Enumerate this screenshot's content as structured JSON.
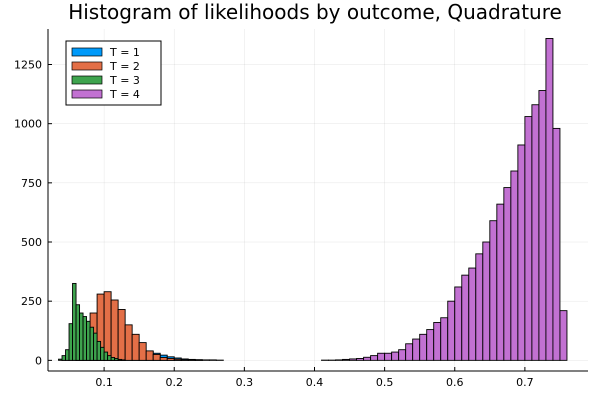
{
  "chart_data": {
    "type": "bar",
    "title": "Histogram of likelihoods by outcome, Quadrature",
    "xlabel": "",
    "ylabel": "",
    "xlim": [
      0.02,
      0.79
    ],
    "ylim": [
      -45,
      1400
    ],
    "xticks": [
      0.1,
      0.2,
      0.3,
      0.4,
      0.5,
      0.6,
      0.7
    ],
    "xtick_labels": [
      "0.1",
      "0.2",
      "0.3",
      "0.4",
      "0.5",
      "0.6",
      "0.7"
    ],
    "yticks": [
      0,
      250,
      500,
      750,
      1000,
      1250
    ],
    "ytick_labels": [
      "0",
      "250",
      "500",
      "750",
      "1000",
      "1250"
    ],
    "grid": true,
    "legend_position": "top-left",
    "series": [
      {
        "name": "T = 1",
        "color": "#009AFA",
        "bin_width": 0.01,
        "bins": [
          [
            0.03,
            0.04,
            0
          ],
          [
            0.04,
            0.05,
            2
          ],
          [
            0.05,
            0.06,
            5
          ],
          [
            0.06,
            0.07,
            10
          ],
          [
            0.07,
            0.08,
            15
          ],
          [
            0.08,
            0.09,
            20
          ],
          [
            0.09,
            0.1,
            25
          ],
          [
            0.1,
            0.11,
            30
          ],
          [
            0.11,
            0.12,
            35
          ],
          [
            0.12,
            0.13,
            40
          ],
          [
            0.13,
            0.14,
            45
          ],
          [
            0.14,
            0.15,
            45
          ],
          [
            0.15,
            0.16,
            40
          ],
          [
            0.16,
            0.17,
            38
          ],
          [
            0.17,
            0.18,
            30
          ],
          [
            0.18,
            0.19,
            22
          ],
          [
            0.19,
            0.2,
            15
          ],
          [
            0.2,
            0.21,
            10
          ],
          [
            0.21,
            0.22,
            6
          ],
          [
            0.22,
            0.23,
            4
          ],
          [
            0.23,
            0.24,
            3
          ],
          [
            0.24,
            0.25,
            2
          ],
          [
            0.25,
            0.26,
            2
          ],
          [
            0.26,
            0.27,
            1
          ]
        ]
      },
      {
        "name": "T = 2",
        "color": "#E36F47",
        "bin_width": 0.01,
        "bins": [
          [
            0.06,
            0.07,
            20
          ],
          [
            0.07,
            0.08,
            80
          ],
          [
            0.08,
            0.09,
            200
          ],
          [
            0.09,
            0.1,
            280
          ],
          [
            0.1,
            0.11,
            290
          ],
          [
            0.11,
            0.12,
            255
          ],
          [
            0.12,
            0.13,
            215
          ],
          [
            0.13,
            0.14,
            150
          ],
          [
            0.14,
            0.15,
            110
          ],
          [
            0.15,
            0.16,
            75
          ],
          [
            0.16,
            0.17,
            40
          ],
          [
            0.17,
            0.18,
            25
          ],
          [
            0.18,
            0.19,
            12
          ],
          [
            0.19,
            0.2,
            8
          ],
          [
            0.2,
            0.21,
            5
          ],
          [
            0.21,
            0.22,
            3
          ],
          [
            0.22,
            0.23,
            2
          ],
          [
            0.23,
            0.24,
            1
          ]
        ]
      },
      {
        "name": "T = 3",
        "color": "#3EA44E",
        "bin_width": 0.005,
        "bins": [
          [
            0.035,
            0.04,
            5
          ],
          [
            0.04,
            0.045,
            20
          ],
          [
            0.045,
            0.05,
            45
          ],
          [
            0.05,
            0.055,
            155
          ],
          [
            0.055,
            0.06,
            325
          ],
          [
            0.06,
            0.065,
            235
          ],
          [
            0.065,
            0.07,
            200
          ],
          [
            0.07,
            0.075,
            185
          ],
          [
            0.075,
            0.08,
            165
          ],
          [
            0.08,
            0.085,
            140
          ],
          [
            0.085,
            0.09,
            115
          ],
          [
            0.09,
            0.095,
            80
          ],
          [
            0.095,
            0.1,
            55
          ],
          [
            0.1,
            0.105,
            35
          ],
          [
            0.105,
            0.11,
            20
          ],
          [
            0.11,
            0.115,
            12
          ],
          [
            0.115,
            0.12,
            8
          ],
          [
            0.12,
            0.125,
            4
          ],
          [
            0.125,
            0.13,
            2
          ]
        ]
      },
      {
        "name": "T = 4",
        "color": "#C271D2",
        "bin_width": 0.01,
        "bins": [
          [
            0.41,
            0.42,
            1
          ],
          [
            0.42,
            0.43,
            1
          ],
          [
            0.43,
            0.44,
            2
          ],
          [
            0.44,
            0.45,
            4
          ],
          [
            0.45,
            0.46,
            6
          ],
          [
            0.46,
            0.47,
            8
          ],
          [
            0.47,
            0.48,
            13
          ],
          [
            0.48,
            0.49,
            20
          ],
          [
            0.49,
            0.5,
            30
          ],
          [
            0.5,
            0.51,
            30
          ],
          [
            0.51,
            0.52,
            35
          ],
          [
            0.52,
            0.53,
            45
          ],
          [
            0.53,
            0.54,
            70
          ],
          [
            0.54,
            0.55,
            90
          ],
          [
            0.55,
            0.56,
            110
          ],
          [
            0.56,
            0.57,
            130
          ],
          [
            0.57,
            0.58,
            160
          ],
          [
            0.58,
            0.59,
            180
          ],
          [
            0.59,
            0.6,
            250
          ],
          [
            0.6,
            0.61,
            310
          ],
          [
            0.61,
            0.62,
            360
          ],
          [
            0.62,
            0.63,
            390
          ],
          [
            0.63,
            0.64,
            450
          ],
          [
            0.64,
            0.65,
            500
          ],
          [
            0.65,
            0.66,
            590
          ],
          [
            0.66,
            0.67,
            660
          ],
          [
            0.67,
            0.68,
            730
          ],
          [
            0.68,
            0.69,
            800
          ],
          [
            0.69,
            0.7,
            910
          ],
          [
            0.7,
            0.71,
            1030
          ],
          [
            0.71,
            0.72,
            1080
          ],
          [
            0.72,
            0.73,
            1140
          ],
          [
            0.73,
            0.74,
            1360
          ],
          [
            0.74,
            0.75,
            980
          ],
          [
            0.75,
            0.76,
            210
          ]
        ]
      }
    ]
  }
}
